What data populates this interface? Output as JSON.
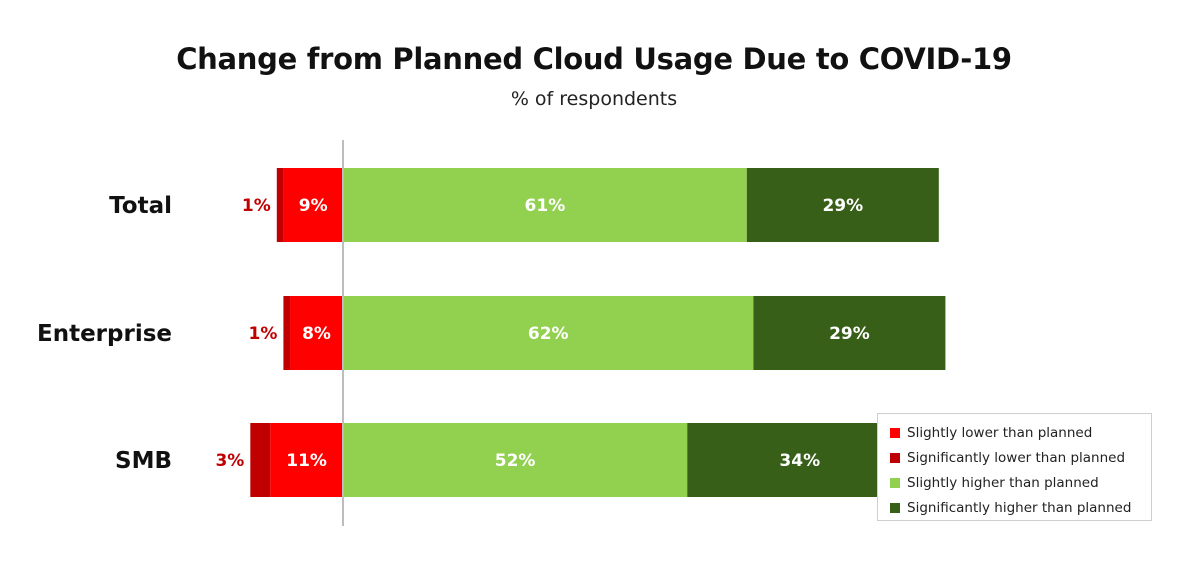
{
  "chart_data": {
    "type": "bar",
    "orientation": "horizontal",
    "stacked": true,
    "diverging": true,
    "title": "Change from Planned Cloud Usage Due to COVID-19",
    "subtitle": "% of respondents",
    "categories": [
      "Total",
      "Enterprise",
      "SMB"
    ],
    "series": [
      {
        "name": "Slightly lower than planned",
        "color": "#ff0000",
        "values": [
          9,
          8,
          11
        ],
        "labels": [
          "9%",
          "8%",
          "11%"
        ],
        "direction": "negative"
      },
      {
        "name": "Significantly lower than planned",
        "color": "#c00000",
        "values": [
          1,
          1,
          3
        ],
        "labels": [
          "1%",
          "1%",
          "3%"
        ],
        "direction": "negative"
      },
      {
        "name": "Slightly higher than planned",
        "color": "#92d050",
        "values": [
          61,
          62,
          52
        ],
        "labels": [
          "61%",
          "62%",
          "52%"
        ],
        "direction": "positive"
      },
      {
        "name": "Significantly higher than planned",
        "color": "#375f17",
        "values": [
          29,
          29,
          34
        ],
        "labels": [
          "29%",
          "29%",
          "34%"
        ],
        "direction": "positive"
      }
    ],
    "legend_position": "bottom-right",
    "grid": false
  }
}
